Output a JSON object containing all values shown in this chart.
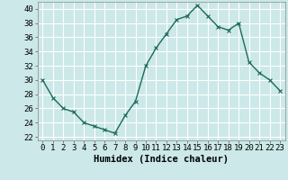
{
  "x": [
    0,
    1,
    2,
    3,
    4,
    5,
    6,
    7,
    8,
    9,
    10,
    11,
    12,
    13,
    14,
    15,
    16,
    17,
    18,
    19,
    20,
    21,
    22,
    23
  ],
  "y": [
    30,
    27.5,
    26,
    25.5,
    24,
    23.5,
    23,
    22.5,
    25,
    27,
    32,
    34.5,
    36.5,
    38.5,
    39,
    40.5,
    39,
    37.5,
    37,
    38,
    32.5,
    31,
    30,
    28.5
  ],
  "line_color": "#1a6b5a",
  "marker": "x",
  "marker_size": 3,
  "line_width": 1.0,
  "xlabel": "Humidex (Indice chaleur)",
  "xlabel_fontsize": 7.5,
  "ylabel_ticks": [
    22,
    24,
    26,
    28,
    30,
    32,
    34,
    36,
    38,
    40
  ],
  "xticks": [
    0,
    1,
    2,
    3,
    4,
    5,
    6,
    7,
    8,
    9,
    10,
    11,
    12,
    13,
    14,
    15,
    16,
    17,
    18,
    19,
    20,
    21,
    22,
    23
  ],
  "xlim": [
    -0.5,
    23.5
  ],
  "ylim": [
    21.5,
    41.0
  ],
  "bg_color": "#cce8e8",
  "grid_color": "#ffffff",
  "tick_fontsize": 6.5,
  "spine_color": "#888888"
}
